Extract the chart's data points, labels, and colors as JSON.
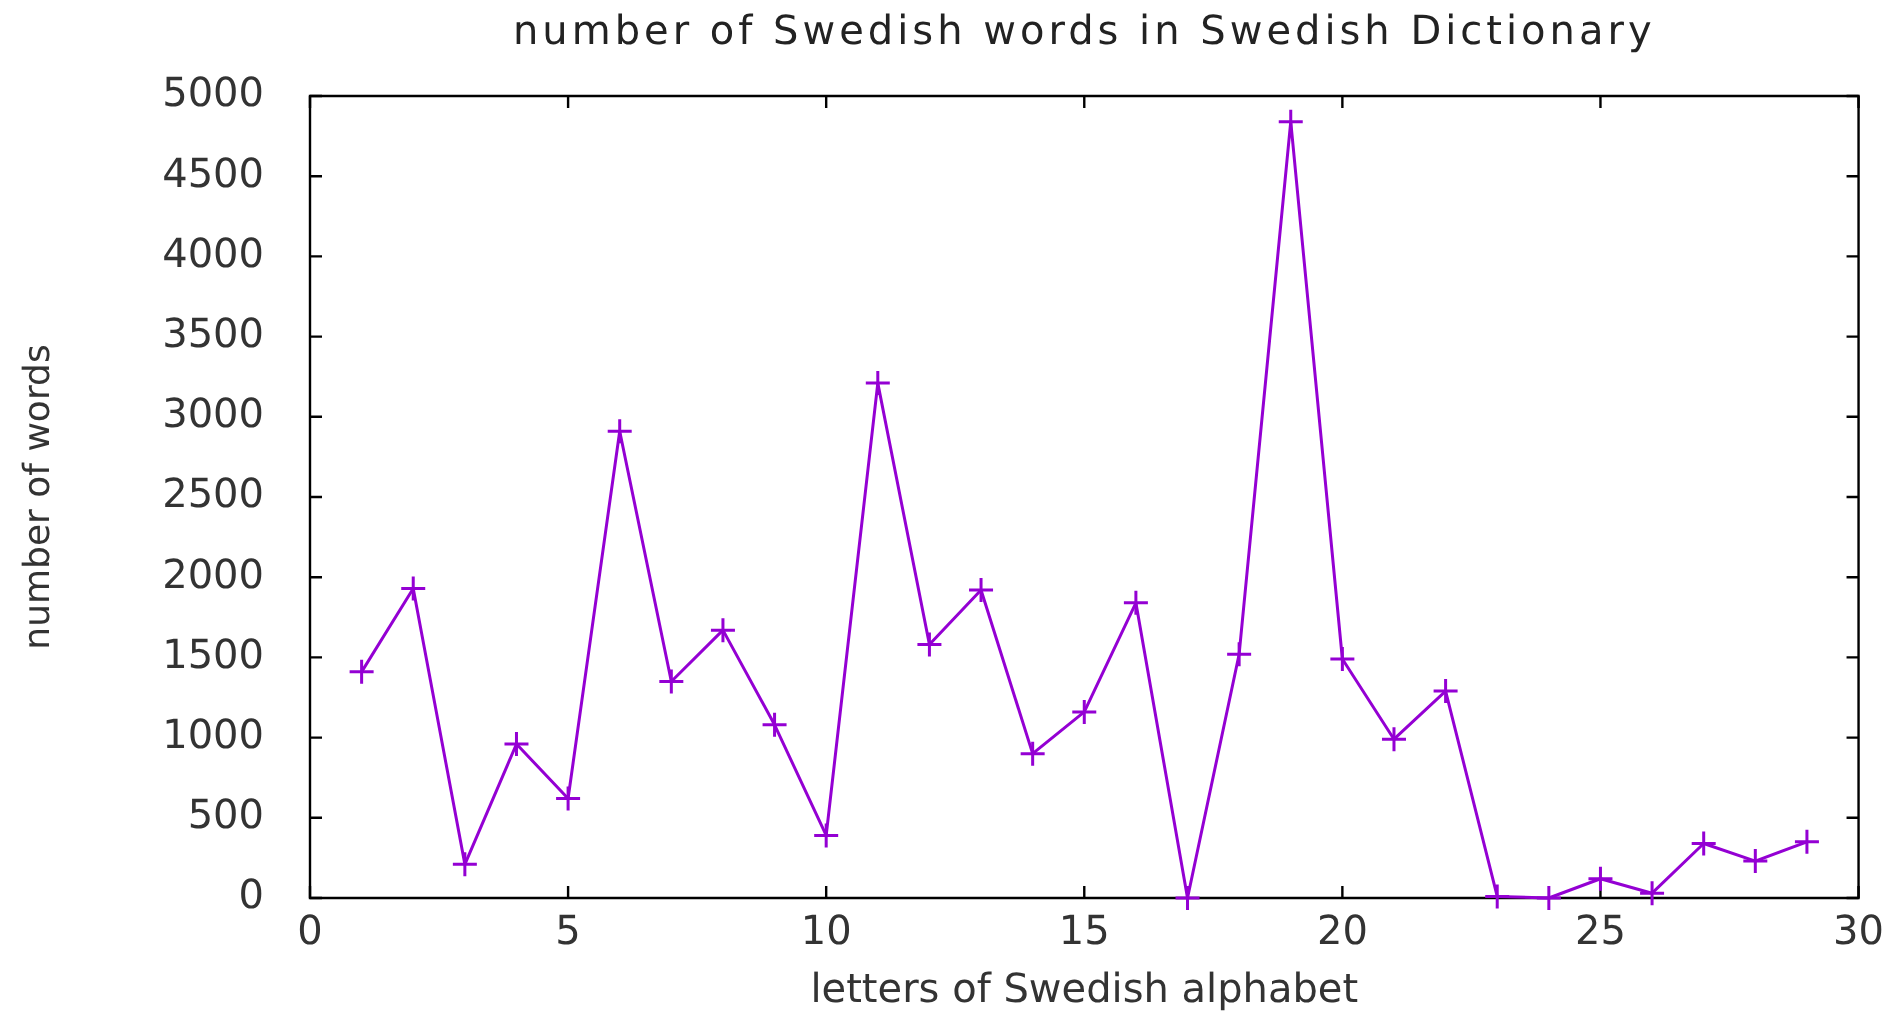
{
  "chart_data": {
    "type": "line",
    "title": "number of Swedish words in Swedish Dictionary",
    "xlabel": "letters of Swedish alphabet",
    "ylabel": "number of words",
    "x": [
      1,
      2,
      3,
      4,
      5,
      6,
      7,
      8,
      9,
      10,
      11,
      12,
      13,
      14,
      15,
      16,
      17,
      18,
      19,
      20,
      21,
      22,
      23,
      24,
      25,
      26,
      27,
      28,
      29
    ],
    "series": [
      {
        "color": "#9400d3",
        "values": [
          1410,
          1930,
          210,
          960,
          620,
          2910,
          1350,
          1670,
          1080,
          390,
          3210,
          1580,
          1920,
          900,
          1160,
          1840,
          0,
          1520,
          4840,
          1490,
          990,
          1290,
          10,
          0,
          120,
          30,
          340,
          230,
          350
        ]
      }
    ],
    "xlim": [
      0,
      30
    ],
    "xticks": [
      0,
      5,
      10,
      15,
      20,
      25,
      30
    ],
    "ylim": [
      0,
      5000
    ],
    "yticks": [
      0,
      500,
      1000,
      1500,
      2000,
      2500,
      3000,
      3500,
      4000,
      4500,
      5000
    ],
    "grid": false,
    "legend": false,
    "marker": "cross",
    "line_style": "solid"
  }
}
